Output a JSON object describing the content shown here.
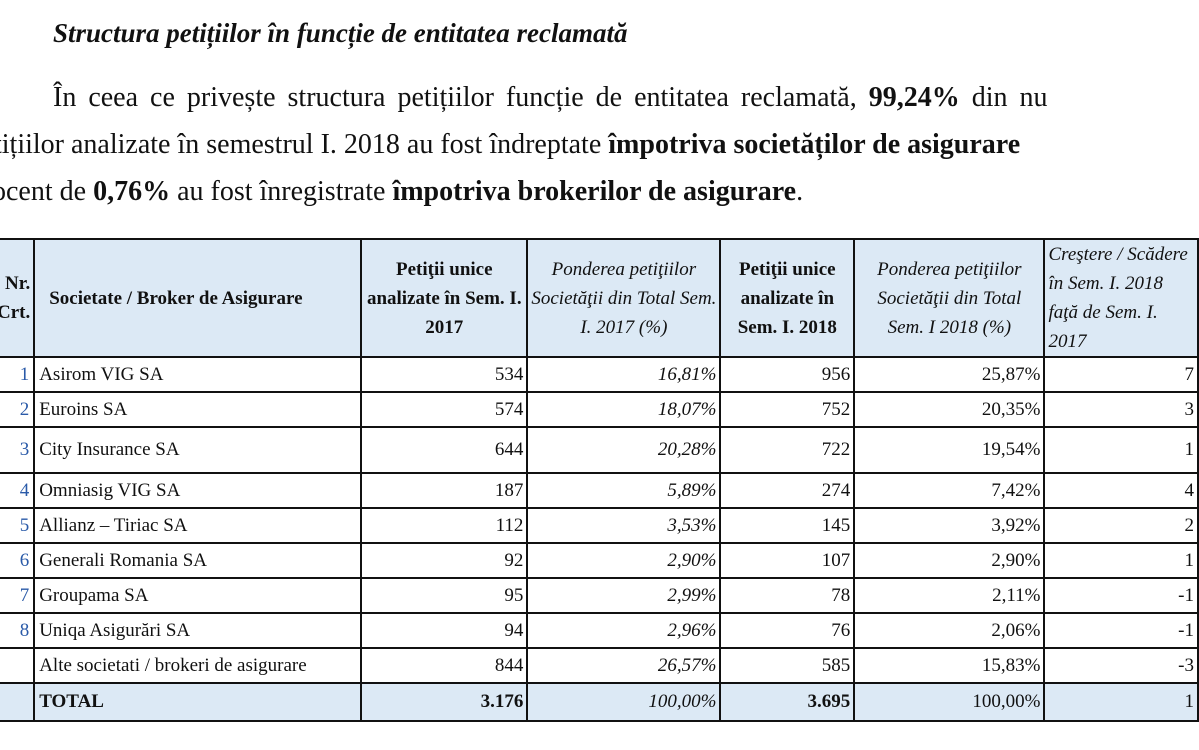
{
  "heading": "Structura petițiilor în funcție de entitatea reclamată",
  "paragraph": {
    "l1_a": "În ceea ce privește structura petițiilor funcție de entitatea reclamată, ",
    "l1_b": "99,24%",
    "l1_c": " din nu",
    "l2_a": "tițiilor analizate în semestrul I. 2018 au fost îndreptate ",
    "l2_b": "împotriva societăților de asigurare",
    "l3_a": "ocent de ",
    "l3_b": "0,76%",
    "l3_c": " au fost înregistrate ",
    "l3_d": "împotriva brokerilor de asigurare",
    "l3_e": "."
  },
  "table": {
    "headers": {
      "nr": "Nr. Crt.",
      "entity": "Societate / Broker de Asigurare",
      "p2017": "Petiţii unice analizate în Sem. I. 2017",
      "w2017": "Ponderea petiţiilor Societăţii din Total Sem. I. 2017 (%)",
      "p2018": "Petiţii unice analizate în Sem. I. 2018",
      "w2018": "Ponderea petiţiilor Societăţii din Total Sem. I 2018 (%)",
      "change": "Creştere / Scădere în Sem. I. 2018 faţă de Sem. I. 2017"
    },
    "rows": [
      {
        "nr": "1",
        "name": "Asirom VIG SA",
        "p2017": "534",
        "w2017": "16,81%",
        "p2018": "956",
        "w2018": "25,87%",
        "change": "7"
      },
      {
        "nr": "2",
        "name": "Euroins SA",
        "p2017": "574",
        "w2017": "18,07%",
        "p2018": "752",
        "w2018": "20,35%",
        "change": "3"
      },
      {
        "nr": "3",
        "name": "City Insurance SA",
        "p2017": "644",
        "w2017": "20,28%",
        "p2018": "722",
        "w2018": "19,54%",
        "change": "1"
      },
      {
        "nr": "4",
        "name": "Omniasig VIG SA",
        "p2017": "187",
        "w2017": "5,89%",
        "p2018": "274",
        "w2018": "7,42%",
        "change": "4"
      },
      {
        "nr": "5",
        "name": "Allianz – Tiriac SA",
        "p2017": "112",
        "w2017": "3,53%",
        "p2018": "145",
        "w2018": "3,92%",
        "change": "2"
      },
      {
        "nr": "6",
        "name": "Generali Romania SA",
        "p2017": "92",
        "w2017": "2,90%",
        "p2018": "107",
        "w2018": "2,90%",
        "change": "1"
      },
      {
        "nr": "7",
        "name": "Groupama SA",
        "p2017": "95",
        "w2017": "2,99%",
        "p2018": "78",
        "w2018": "2,11%",
        "change": "-1"
      },
      {
        "nr": "8",
        "name": "Uniqa Asigurări SA",
        "p2017": "94",
        "w2017": "2,96%",
        "p2018": "76",
        "w2018": "2,06%",
        "change": "-1"
      },
      {
        "nr": "",
        "name": "Alte societati / brokeri de asigurare",
        "p2017": "844",
        "w2017": "26,57%",
        "p2018": "585",
        "w2018": "15,83%",
        "change": "-3"
      }
    ],
    "total": {
      "label": "TOTAL",
      "p2017": "3.176",
      "w2017": "100,00%",
      "p2018": "3.695",
      "w2018": "100,00%",
      "change": "1"
    }
  },
  "colors": {
    "header_bg": "#dce9f5",
    "row_number": "#2a5aa8"
  }
}
